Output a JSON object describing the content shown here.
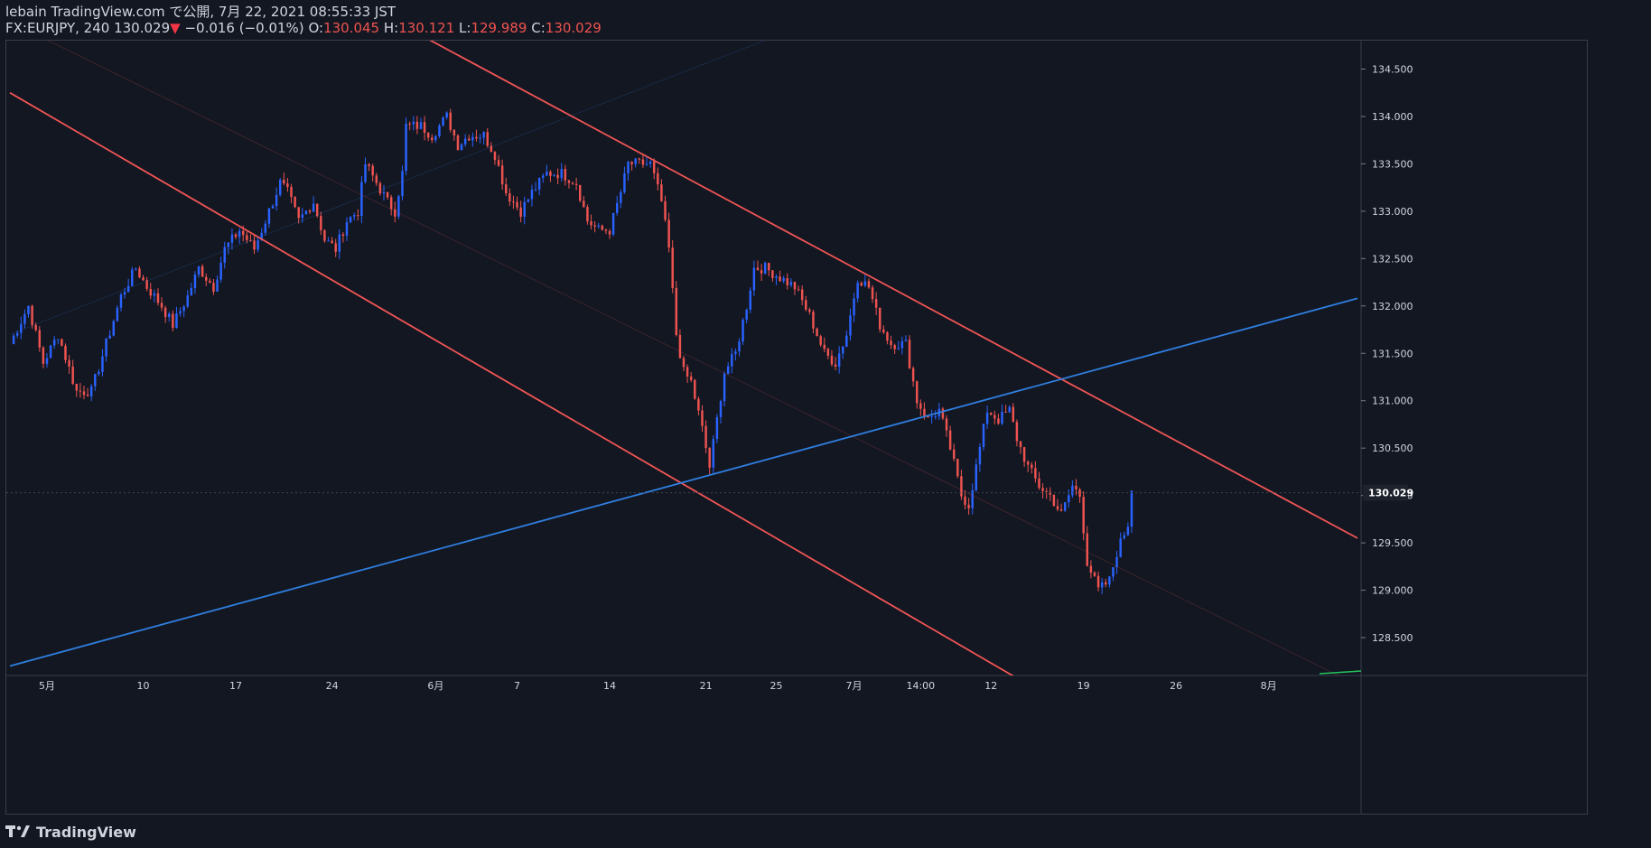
{
  "header": {
    "published": "lebain TradingView.com で公開, 7月 22, 2021 08:55:33 JST",
    "symbol": "FX:EURJPY, 240",
    "last": "130.029",
    "change": "−0.016 (−0.01%)",
    "open_label": "O:",
    "open": "130.045",
    "high_label": "H:",
    "high": "130.121",
    "low_label": "L:",
    "low": "129.989",
    "close_label": "C:",
    "close": "130.029"
  },
  "footer": {
    "brand": "TradingView"
  },
  "colors": {
    "background": "#131722",
    "up": "#2962ff",
    "down": "#ef5350",
    "channel": "#f05555",
    "trendline": "#2f7fe0",
    "grid": "#3a3e4a",
    "text": "#d1d4dc"
  },
  "chart_data": {
    "type": "candlestick",
    "symbol": "FX:EURJPY",
    "interval": "240",
    "ylim": [
      128.1,
      134.8
    ],
    "y_ticks": [
      128.5,
      129.0,
      129.5,
      130.0,
      130.5,
      131.0,
      131.5,
      132.0,
      132.5,
      133.0,
      133.5,
      134.0,
      134.5
    ],
    "y_tick_labels": [
      "128.500",
      "129.000",
      "129.500",
      "130.000",
      "130.500",
      "131.000",
      "131.500",
      "132.000",
      "132.500",
      "133.000",
      "133.500",
      "134.000",
      "134.500"
    ],
    "x_labels": [
      {
        "label": "5月",
        "bar": 10
      },
      {
        "label": "10",
        "bar": 36
      },
      {
        "label": "17",
        "bar": 61
      },
      {
        "label": "24",
        "bar": 87
      },
      {
        "label": "6月",
        "bar": 115
      },
      {
        "label": "7",
        "bar": 137
      },
      {
        "label": "14",
        "bar": 162
      },
      {
        "label": "21",
        "bar": 188
      },
      {
        "label": "25",
        "bar": 207
      },
      {
        "label": "7月",
        "bar": 228
      },
      {
        "label": "14:00",
        "bar": 246
      },
      {
        "label": "12",
        "bar": 265
      },
      {
        "label": "19",
        "bar": 290
      },
      {
        "label": "26",
        "bar": 315
      },
      {
        "label": "8月",
        "bar": 340
      }
    ],
    "total_bars": 364,
    "current_price": 130.029,
    "current_price_label": "130.029",
    "anchors": [
      [
        0,
        131.6
      ],
      [
        5,
        132.0
      ],
      [
        9,
        131.4
      ],
      [
        13,
        131.7
      ],
      [
        18,
        131.1
      ],
      [
        22,
        131.1
      ],
      [
        26,
        131.6
      ],
      [
        30,
        132.1
      ],
      [
        34,
        132.4
      ],
      [
        37,
        132.2
      ],
      [
        41,
        132.0
      ],
      [
        44,
        131.8
      ],
      [
        48,
        132.1
      ],
      [
        51,
        132.4
      ],
      [
        55,
        132.2
      ],
      [
        58,
        132.6
      ],
      [
        62,
        132.8
      ],
      [
        66,
        132.6
      ],
      [
        70,
        133.0
      ],
      [
        73,
        133.3
      ],
      [
        75,
        133.2
      ],
      [
        78,
        132.9
      ],
      [
        82,
        133.1
      ],
      [
        85,
        132.7
      ],
      [
        88,
        132.6
      ],
      [
        91,
        132.9
      ],
      [
        94,
        133.0
      ],
      [
        96,
        133.5
      ],
      [
        99,
        133.3
      ],
      [
        102,
        133.1
      ],
      [
        104,
        133.0
      ],
      [
        106,
        133.4
      ],
      [
        107,
        133.9
      ],
      [
        111,
        133.9
      ],
      [
        114,
        133.8
      ],
      [
        118,
        134.0
      ],
      [
        121,
        133.7
      ],
      [
        124,
        133.8
      ],
      [
        128,
        133.8
      ],
      [
        131,
        133.6
      ],
      [
        134,
        133.2
      ],
      [
        138,
        133.0
      ],
      [
        141,
        133.2
      ],
      [
        145,
        133.4
      ],
      [
        149,
        133.4
      ],
      [
        153,
        133.3
      ],
      [
        156,
        132.9
      ],
      [
        159,
        132.8
      ],
      [
        162,
        132.8
      ],
      [
        165,
        133.2
      ],
      [
        167,
        133.5
      ],
      [
        170,
        133.5
      ],
      [
        173,
        133.5
      ],
      [
        176,
        133.1
      ],
      [
        178,
        132.6
      ],
      [
        180,
        131.7
      ],
      [
        182,
        131.3
      ],
      [
        184,
        131.2
      ],
      [
        187,
        130.7
      ],
      [
        189,
        130.3
      ],
      [
        191,
        130.8
      ],
      [
        193,
        131.3
      ],
      [
        196,
        131.5
      ],
      [
        199,
        132.0
      ],
      [
        201,
        132.4
      ],
      [
        204,
        132.4
      ],
      [
        208,
        132.3
      ],
      [
        212,
        132.2
      ],
      [
        216,
        131.9
      ],
      [
        220,
        131.5
      ],
      [
        223,
        131.4
      ],
      [
        226,
        131.7
      ],
      [
        229,
        132.3
      ],
      [
        232,
        132.2
      ],
      [
        235,
        131.8
      ],
      [
        238,
        131.6
      ],
      [
        242,
        131.6
      ],
      [
        245,
        131.0
      ],
      [
        248,
        130.8
      ],
      [
        251,
        130.9
      ],
      [
        254,
        130.5
      ],
      [
        257,
        130.0
      ],
      [
        259,
        129.9
      ],
      [
        261,
        130.3
      ],
      [
        264,
        130.9
      ],
      [
        267,
        130.8
      ],
      [
        270,
        130.9
      ],
      [
        272,
        130.6
      ],
      [
        275,
        130.3
      ],
      [
        278,
        130.1
      ],
      [
        281,
        130.0
      ],
      [
        284,
        129.8
      ],
      [
        287,
        130.1
      ],
      [
        289,
        130.0
      ],
      [
        291,
        129.3
      ],
      [
        294,
        129.0
      ],
      [
        297,
        129.1
      ],
      [
        299,
        129.4
      ],
      [
        302,
        129.7
      ],
      [
        303,
        130.05
      ]
    ],
    "lines": [
      {
        "name": "",
        "color": "#f05555",
        "from": [
          0,
          134.25
        ],
        "to": [
          284,
          127.8
        ]
      },
      {
        "name": "",
        "color": "#f05555",
        "from": [
          108,
          134.92
        ],
        "to": [
          364,
          129.55
        ]
      },
      {
        "name": "",
        "color": "#f05555",
        "from": [
          0,
          135.0
        ],
        "to": [
          364,
          128.0
        ],
        "faint": true
      },
      {
        "name": "",
        "color": "#2f7fe0",
        "from": [
          0,
          128.2
        ],
        "to": [
          364,
          132.08
        ]
      },
      {
        "name": "",
        "color": "#2f7fe0",
        "from": [
          0,
          131.7
        ],
        "to": [
          230,
          135.2
        ],
        "faint": true
      }
    ]
  }
}
